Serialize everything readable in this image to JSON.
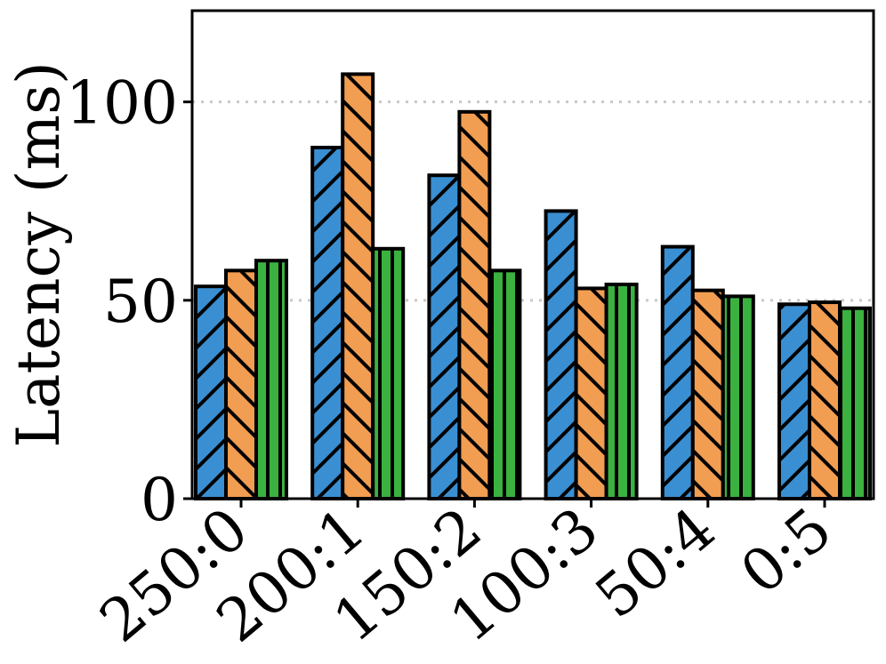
{
  "chart_data": {
    "type": "bar",
    "title": "",
    "xlabel": "",
    "ylabel": "Latency (ms)",
    "categories": [
      "250:0",
      "200:1",
      "150:2",
      "100:3",
      "50:4",
      "0:5"
    ],
    "series": [
      {
        "values": [
          53.5,
          88.5,
          81.5,
          72.5,
          63.5,
          49.0
        ],
        "color": "#3a8fd2",
        "hatch": "forward-diagonal"
      },
      {
        "values": [
          57.5,
          107.0,
          97.5,
          53.0,
          52.5,
          49.5
        ],
        "color": "#f19d52",
        "hatch": "back-diagonal"
      },
      {
        "values": [
          60.0,
          63.0,
          57.5,
          54.0,
          51.0,
          48.0
        ],
        "color": "#3bb140",
        "hatch": "vertical"
      }
    ],
    "ylim": [
      0,
      123
    ],
    "yticks": [
      0,
      50,
      100
    ],
    "grid": "horizontal-dotted",
    "legend": "none"
  }
}
